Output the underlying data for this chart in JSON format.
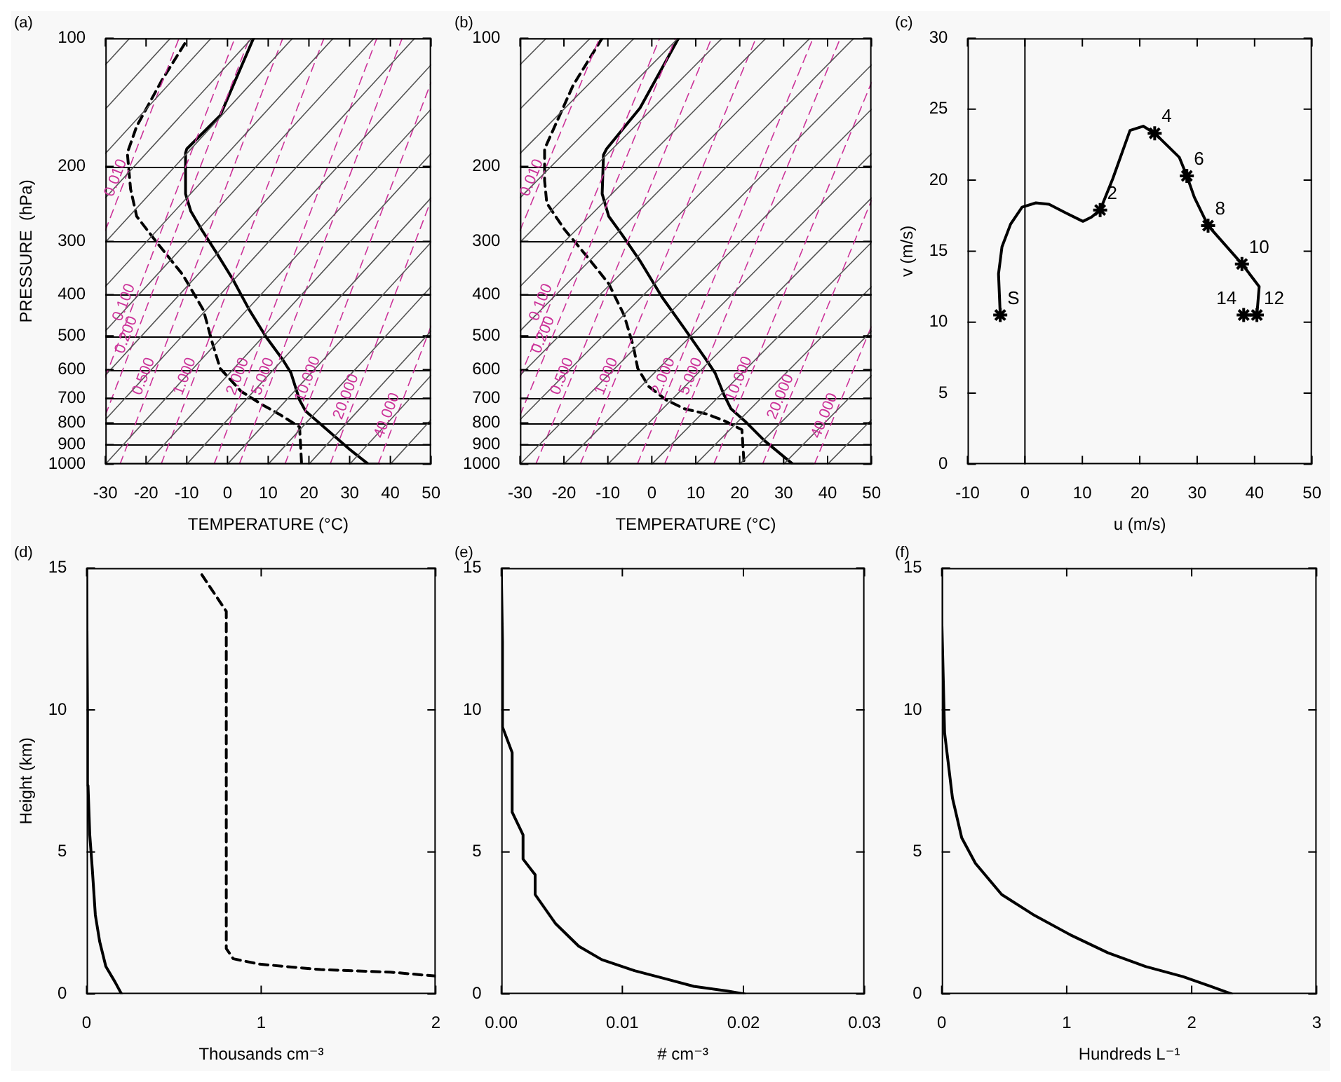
{
  "chart_data": [
    {
      "type": "line",
      "title": "(a)",
      "xlabel": "TEMPERATURE (°C)",
      "ylabel": "PRESSURE  (hPa)",
      "xlim": [
        -30,
        50
      ],
      "xticks": [
        -30,
        -20,
        -10,
        0,
        10,
        20,
        30,
        40,
        50
      ],
      "ylim": [
        1000,
        100
      ],
      "yticks": [
        100,
        200,
        300,
        400,
        500,
        600,
        700,
        800,
        900,
        1000
      ],
      "log": "y",
      "grid": "y",
      "series": [
        {
          "color": "#555555",
          "x": [
            -30,
            -24
          ],
          "values": [
            115.5,
            100
          ]
        },
        {
          "color": "#555555",
          "x": [
            -30,
            -14
          ],
          "values": [
            146.8,
            100
          ]
        },
        {
          "color": "#555555",
          "x": [
            -30,
            -4
          ],
          "values": [
            186.6,
            100
          ]
        },
        {
          "color": "#555555",
          "x": [
            -30,
            6
          ],
          "values": [
            237.1,
            100
          ]
        },
        {
          "color": "#555555",
          "x": [
            -30,
            16
          ],
          "values": [
            301.5,
            100
          ]
        },
        {
          "color": "#555555",
          "x": [
            -30,
            26
          ],
          "values": [
            383.1,
            100
          ]
        },
        {
          "color": "#555555",
          "x": [
            -30,
            36
          ],
          "values": [
            486.9,
            100
          ]
        },
        {
          "color": "#555555",
          "x": [
            -30,
            46
          ],
          "values": [
            618.9,
            100
          ]
        },
        {
          "color": "#555555",
          "x": [
            -30,
            50
          ],
          "values": [
            786.6,
            115.5
          ]
        },
        {
          "color": "#555555",
          "x": [
            -30,
            50
          ],
          "values": [
            1000,
            146.8
          ]
        },
        {
          "color": "#555555",
          "x": [
            -20,
            50
          ],
          "values": [
            1000,
            186.6
          ]
        },
        {
          "color": "#555555",
          "x": [
            -10,
            50
          ],
          "values": [
            1000,
            237.1
          ]
        },
        {
          "color": "#555555",
          "x": [
            0,
            50
          ],
          "values": [
            1000,
            301.5
          ]
        },
        {
          "color": "#555555",
          "x": [
            10,
            50
          ],
          "values": [
            1000,
            383.1
          ]
        },
        {
          "color": "#555555",
          "x": [
            20,
            50
          ],
          "values": [
            1000,
            486.9
          ]
        },
        {
          "color": "#555555",
          "x": [
            30,
            50
          ],
          "values": [
            1000,
            618.9
          ]
        },
        {
          "color": "#555555",
          "x": [
            40,
            50
          ],
          "values": [
            1000,
            786.6
          ]
        },
        {
          "name": "0.010",
          "color": "#cc3399",
          "line_style": "dashed",
          "x": [
            -30,
            -11.9
          ],
          "values": [
            283,
            100
          ]
        },
        {
          "name": "0.100",
          "color": "#cc3399",
          "line_style": "dashed",
          "x": [
            -30,
            1.8
          ],
          "values": [
            625,
            100
          ]
        },
        {
          "name": "0.200",
          "color": "#cc3399",
          "line_style": "dashed",
          "x": [
            -30,
            5.4
          ],
          "values": [
            768,
            100
          ]
        },
        {
          "name": "0.500",
          "color": "#cc3399",
          "line_style": "dashed",
          "x": [
            -26.4,
            13.6
          ],
          "values": [
            1000,
            100
          ]
        },
        {
          "name": "1.000",
          "color": "#cc3399",
          "line_style": "dashed",
          "x": [
            -16.3,
            23.7
          ],
          "values": [
            1000,
            100
          ]
        },
        {
          "name": "2.000",
          "color": "#cc3399",
          "line_style": "dashed",
          "x": [
            -3.3,
            36.7
          ],
          "values": [
            1000,
            100
          ]
        },
        {
          "name": "5.000",
          "color": "#cc3399",
          "line_style": "dashed",
          "x": [
            2.9,
            42.9
          ],
          "values": [
            1000,
            100
          ]
        },
        {
          "name": "10.000",
          "color": "#cc3399",
          "line_style": "dashed",
          "x": [
            14.1,
            50
          ],
          "values": [
            1000,
            127
          ]
        },
        {
          "name": "20.000",
          "color": "#cc3399",
          "line_style": "dashed",
          "x": [
            25.2,
            50
          ],
          "values": [
            1000,
            240
          ]
        },
        {
          "name": "40.000",
          "color": "#cc3399",
          "line_style": "dashed",
          "x": [
            37,
            50
          ],
          "values": [
            1000,
            474
          ]
        },
        {
          "color": "#000000",
          "x": [
            6.4,
            -1.8,
            -10,
            -10.3,
            -10.3,
            -9,
            -6.4,
            -2.8,
            1.3,
            5.4,
            9.5,
            13.6,
            15.6,
            17.7,
            19.2,
            24.9,
            30,
            34.6,
            37.2
          ],
          "values": [
            100,
            152,
            182,
            186,
            232,
            255,
            281,
            318,
            368,
            435,
            503,
            569,
            611,
            707,
            751,
            837,
            923,
            1000,
            1000
          ]
        },
        {
          "color": "#000000",
          "line_style": "dashed",
          "x": [
            -10.5,
            -16.2,
            -22.3,
            -24.6,
            -23.8,
            -22.3,
            -17.2,
            -11,
            -5.9,
            -3.8,
            -1.8,
            3.3,
            8.5,
            12.6,
            17.7,
            18.2
          ],
          "values": [
            103,
            126,
            161,
            186,
            226,
            262,
            303,
            359,
            435,
            516,
            596,
            674,
            725,
            762,
            818,
            1000
          ]
        }
      ]
    },
    {
      "type": "line",
      "title": "(b)",
      "xlabel": "TEMPERATURE (°C)",
      "xlim": [
        -30,
        50
      ],
      "xticks": [
        -30,
        -20,
        -10,
        0,
        10,
        20,
        30,
        40,
        50
      ],
      "ylim": [
        1000,
        100
      ],
      "yticks": [
        100,
        200,
        300,
        400,
        500,
        600,
        700,
        800,
        900,
        1000
      ],
      "log": "y",
      "grid": "y",
      "series": [
        {
          "color": "#555555",
          "x": [
            -30,
            -24
          ],
          "values": [
            115.5,
            100
          ]
        },
        {
          "color": "#555555",
          "x": [
            -30,
            -14
          ],
          "values": [
            146.8,
            100
          ]
        },
        {
          "color": "#555555",
          "x": [
            -30,
            -4
          ],
          "values": [
            186.6,
            100
          ]
        },
        {
          "color": "#555555",
          "x": [
            -30,
            6
          ],
          "values": [
            237.1,
            100
          ]
        },
        {
          "color": "#555555",
          "x": [
            -30,
            16
          ],
          "values": [
            301.5,
            100
          ]
        },
        {
          "color": "#555555",
          "x": [
            -30,
            26
          ],
          "values": [
            383.1,
            100
          ]
        },
        {
          "color": "#555555",
          "x": [
            -30,
            36
          ],
          "values": [
            486.9,
            100
          ]
        },
        {
          "color": "#555555",
          "x": [
            -30,
            46
          ],
          "values": [
            618.9,
            100
          ]
        },
        {
          "color": "#555555",
          "x": [
            -30,
            50
          ],
          "values": [
            786.6,
            115.5
          ]
        },
        {
          "color": "#555555",
          "x": [
            -30,
            50
          ],
          "values": [
            1000,
            146.8
          ]
        },
        {
          "color": "#555555",
          "x": [
            -20,
            50
          ],
          "values": [
            1000,
            186.6
          ]
        },
        {
          "color": "#555555",
          "x": [
            -10,
            50
          ],
          "values": [
            1000,
            237.1
          ]
        },
        {
          "color": "#555555",
          "x": [
            0,
            50
          ],
          "values": [
            1000,
            301.5
          ]
        },
        {
          "color": "#555555",
          "x": [
            10,
            50
          ],
          "values": [
            1000,
            383.1
          ]
        },
        {
          "color": "#555555",
          "x": [
            20,
            50
          ],
          "values": [
            1000,
            486.9
          ]
        },
        {
          "color": "#555555",
          "x": [
            30,
            50
          ],
          "values": [
            1000,
            618.9
          ]
        },
        {
          "color": "#555555",
          "x": [
            40,
            50
          ],
          "values": [
            1000,
            786.6
          ]
        },
        {
          "name": "0.010",
          "color": "#cc3399",
          "line_style": "dashed",
          "x": [
            -30,
            -11.9
          ],
          "values": [
            283,
            100
          ]
        },
        {
          "name": "0.100",
          "color": "#cc3399",
          "line_style": "dashed",
          "x": [
            -30,
            1.8
          ],
          "values": [
            625,
            100
          ]
        },
        {
          "name": "0.200",
          "color": "#cc3399",
          "line_style": "dashed",
          "x": [
            -30,
            5.4
          ],
          "values": [
            768,
            100
          ]
        },
        {
          "name": "0.500",
          "color": "#cc3399",
          "line_style": "dashed",
          "x": [
            -26.4,
            13.6
          ],
          "values": [
            1000,
            100
          ]
        },
        {
          "name": "1.000",
          "color": "#cc3399",
          "line_style": "dashed",
          "x": [
            -16.3,
            23.7
          ],
          "values": [
            1000,
            100
          ]
        },
        {
          "name": "2.000",
          "color": "#cc3399",
          "line_style": "dashed",
          "x": [
            -3.3,
            36.7
          ],
          "values": [
            1000,
            100
          ]
        },
        {
          "name": "5.000",
          "color": "#cc3399",
          "line_style": "dashed",
          "x": [
            2.9,
            42.9
          ],
          "values": [
            1000,
            100
          ]
        },
        {
          "name": "10.000",
          "color": "#cc3399",
          "line_style": "dashed",
          "x": [
            14.1,
            50
          ],
          "values": [
            1000,
            127
          ]
        },
        {
          "name": "20.000",
          "color": "#cc3399",
          "line_style": "dashed",
          "x": [
            25.2,
            50
          ],
          "values": [
            1000,
            240
          ]
        },
        {
          "name": "40.000",
          "color": "#cc3399",
          "line_style": "dashed",
          "x": [
            37,
            50
          ],
          "values": [
            1000,
            474
          ]
        },
        {
          "color": "#000000",
          "x": [
            6.1,
            -2.7,
            -10.3,
            -11,
            -11.3,
            -9.8,
            -6.8,
            -2.7,
            2.3,
            7.4,
            12.4,
            14.4,
            16.5,
            18,
            21.5,
            25.6,
            32.1,
            36.7
          ],
          "values": [
            100,
            146,
            182,
            188,
            232,
            262,
            289,
            333,
            405,
            480,
            569,
            611,
            690,
            741,
            798,
            880,
            1000,
            1000
          ]
        },
        {
          "color": "#000000",
          "line_style": "dashed",
          "x": [
            -11.3,
            -17.9,
            -24.4,
            -24.4,
            -23.9,
            -19.9,
            -14.8,
            -9.8,
            -6.3,
            -4.2,
            -3.2,
            -0.7,
            3.3,
            7.4,
            12.4,
            16.5,
            20.5,
            21
          ],
          "values": [
            100,
            129,
            182,
            216,
            244,
            281,
            325,
            377,
            447,
            529,
            596,
            657,
            707,
            741,
            762,
            791,
            830,
            1000
          ]
        }
      ]
    },
    {
      "type": "line",
      "title": "(c)",
      "xlabel": "u (m/s)",
      "ylabel": "v (m/s)",
      "xlim": [
        -10,
        50
      ],
      "xticks": [
        -10,
        0,
        10,
        20,
        30,
        40,
        50
      ],
      "ylim": [
        0,
        30
      ],
      "yticks": [
        0,
        5,
        10,
        15,
        20,
        25,
        30
      ],
      "ref_lines": [
        {
          "axis": "x",
          "value": 0,
          "color": "#000000"
        }
      ],
      "annotations": [
        {
          "text": "S",
          "x": -4.3,
          "y": 10.5
        },
        {
          "text": "2",
          "x": 13.1,
          "y": 17.9
        },
        {
          "text": "4",
          "x": 22.6,
          "y": 23.3
        },
        {
          "text": "6",
          "x": 28.2,
          "y": 20.3
        },
        {
          "text": "8",
          "x": 31.9,
          "y": 16.8
        },
        {
          "text": "10",
          "x": 37.8,
          "y": 14.1
        },
        {
          "text": "12",
          "x": 40.4,
          "y": 10.5
        },
        {
          "text": "14",
          "x": 38.1,
          "y": 10.5
        }
      ],
      "series": [
        {
          "color": "#000000",
          "x": [
            -4.3,
            -4.6,
            -4.0,
            -2.5,
            -0.5,
            1.9,
            4.2,
            7.1,
            10.1,
            11.6,
            13.1,
            15.3,
            18.3,
            20.6,
            22.6,
            26.9,
            28.2,
            29.5,
            31.9,
            37.8,
            40.8,
            40.4,
            38.1
          ],
          "values": [
            10.5,
            13.4,
            15.3,
            16.9,
            18.1,
            18.4,
            18.3,
            17.7,
            17.1,
            17.4,
            17.9,
            20.1,
            23.5,
            23.8,
            23.3,
            21.6,
            20.3,
            18.8,
            16.8,
            14.1,
            12.5,
            10.5,
            10.5
          ]
        },
        {
          "type": "scatter",
          "color": "#000000",
          "marker": "cross",
          "x": [
            -4.3,
            13.1,
            22.6,
            28.2,
            31.9,
            37.8,
            40.4,
            38.1
          ],
          "values": [
            10.5,
            17.9,
            23.3,
            20.3,
            16.8,
            14.1,
            10.5,
            10.5
          ]
        }
      ]
    },
    {
      "type": "line",
      "title": "(d)",
      "xlabel": "Thousands cm⁻³",
      "ylabel": "Height (km)",
      "xlim": [
        0,
        2
      ],
      "xticks": [
        0,
        1,
        2
      ],
      "ylim": [
        0,
        15
      ],
      "yticks": [
        0,
        5,
        10,
        15
      ],
      "series": [
        {
          "color": "#000000",
          "x": [
            0.2,
            0.163,
            0.11,
            0.075,
            0.05,
            0.033,
            0.018,
            0.008,
            0.005,
            0
          ],
          "values": [
            0,
            0.42,
            0.97,
            1.84,
            2.78,
            4.36,
            5.61,
            7.34,
            10.0,
            15
          ]
        },
        {
          "color": "#000000",
          "line_style": "dashed",
          "x": [
            0.66,
            0.8,
            0.8,
            0.84,
            0.99,
            1.34,
            1.74,
            2.0
          ],
          "values": [
            14.76,
            13.47,
            1.6,
            1.24,
            1.05,
            0.86,
            0.77,
            0.63
          ]
        }
      ]
    },
    {
      "type": "line",
      "title": "(e)",
      "xlabel": "# cm⁻³",
      "xlim": [
        0,
        0.03
      ],
      "xticks": [
        {
          "value": 0,
          "label": "0.00"
        },
        0.01,
        0.02,
        0.03
      ],
      "ylim": [
        0,
        15
      ],
      "yticks": [
        0,
        5,
        10,
        15
      ],
      "series": [
        {
          "color": "#000000",
          "x": [
            0,
            0.0001,
            0.0001,
            0.0009,
            0.0009,
            0.0018,
            0.0018,
            0.0028,
            0.0028,
            0.0045,
            0.0064,
            0.0083,
            0.011,
            0.0136,
            0.0159,
            0.0186,
            0.0201
          ],
          "values": [
            15,
            12.4,
            9.4,
            8.5,
            6.4,
            5.6,
            4.75,
            4.2,
            3.5,
            2.47,
            1.68,
            1.21,
            0.82,
            0.53,
            0.27,
            0.11,
            0
          ]
        }
      ]
    },
    {
      "type": "line",
      "title": "(f)",
      "xlabel": "Hundreds L⁻¹",
      "xlim": [
        0,
        3
      ],
      "xticks": [
        0,
        1,
        2,
        3
      ],
      "ylim": [
        0,
        15
      ],
      "yticks": [
        0,
        5,
        10,
        15
      ],
      "series": [
        {
          "color": "#000000",
          "x": [
            0,
            0,
            0.023,
            0.086,
            0.16,
            0.27,
            0.48,
            0.73,
            1.03,
            1.33,
            1.63,
            1.93,
            2.15,
            2.32
          ],
          "values": [
            15,
            13.3,
            9.2,
            6.9,
            5.5,
            4.6,
            3.5,
            2.8,
            2.08,
            1.45,
            0.97,
            0.61,
            0.27,
            0
          ]
        }
      ]
    }
  ]
}
